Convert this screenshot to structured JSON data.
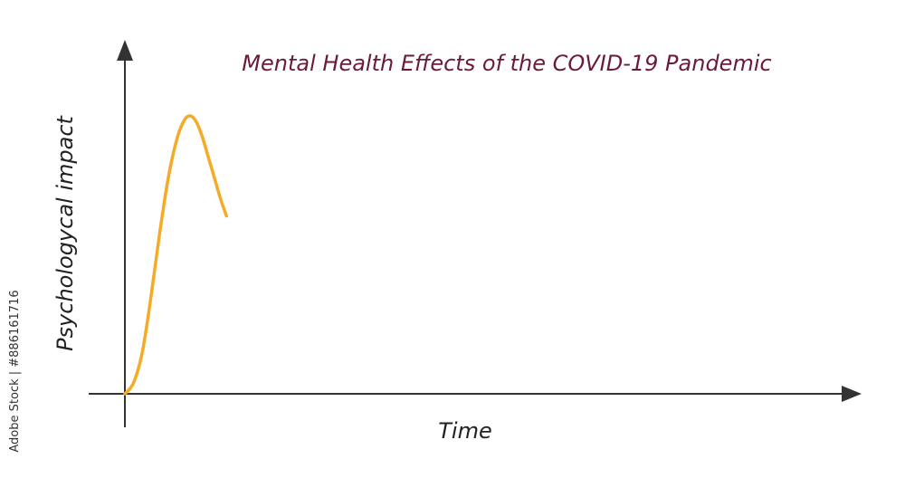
{
  "chart_data": {
    "type": "line",
    "title": "Mental Health Effects of the COVID-19 Pandemic",
    "xlabel": "Time",
    "ylabel": "Psychologycal impact",
    "grid": false,
    "legend": "none",
    "xlim": [
      0,
      100
    ],
    "ylim": [
      0,
      100
    ],
    "series": [
      {
        "color": "#f5ab25",
        "x": [
          0,
          1.2,
          2.4,
          3.6,
          4.8,
          6.0,
          7.2,
          8.2,
          9.0,
          9.8,
          10.6,
          11.4,
          12.3,
          13.2,
          14.0
        ],
        "y": [
          0,
          4,
          15,
          35,
          58,
          78,
          92,
          98.5,
          100,
          98,
          93,
          86,
          78,
          70,
          64
        ]
      }
    ],
    "colors": {
      "title": "#6b1a3a",
      "axis": "#333333",
      "line": "#f5ab25"
    }
  },
  "watermark": {
    "text": "Adobe Stock | #886161716"
  }
}
